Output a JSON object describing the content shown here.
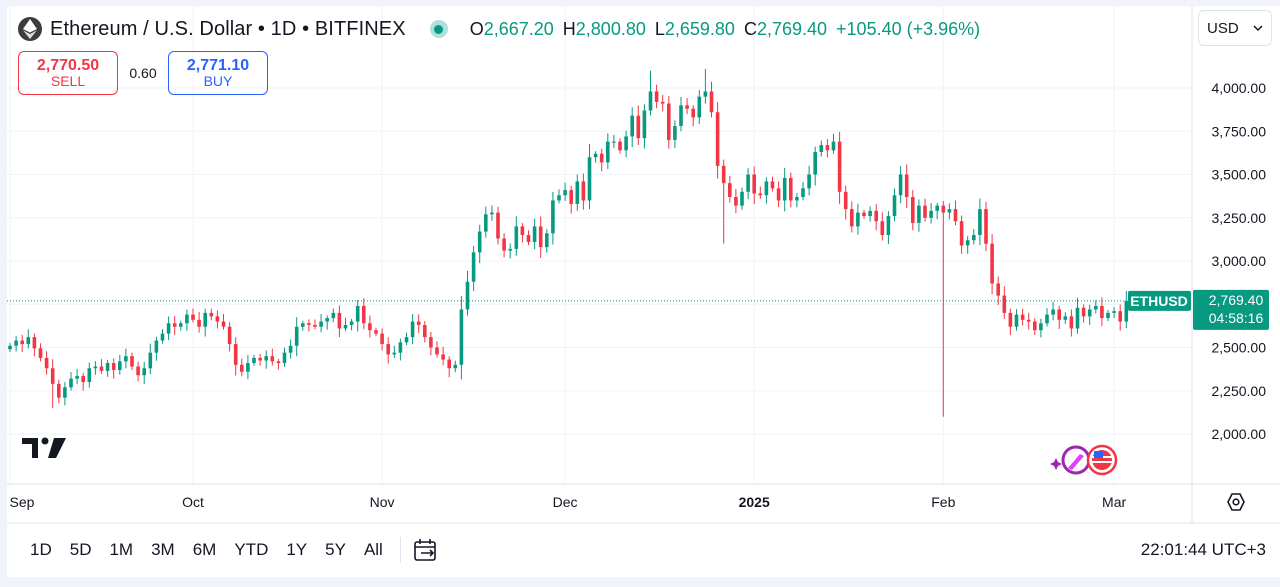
{
  "header": {
    "symbol_title": "Ethereum / U.S. Dollar • 1D • BITFINEX",
    "ohlc": [
      {
        "key": "O",
        "value": "2,667.20"
      },
      {
        "key": "H",
        "value": "2,800.80"
      },
      {
        "key": "L",
        "value": "2,659.80"
      },
      {
        "key": "C",
        "value": "2,769.40"
      }
    ],
    "change": "+105.40 (+3.96%)"
  },
  "trade": {
    "sell_price": "2,770.50",
    "sell_label": "SELL",
    "spread": "0.60",
    "buy_price": "2,771.10",
    "buy_label": "BUY"
  },
  "currency": {
    "label": "USD"
  },
  "price_scale": {
    "ticks": [
      "4,000.00",
      "3,750.00",
      "3,500.00",
      "3,250.00",
      "3,000.00",
      "2,500.00",
      "2,250.00",
      "2,000.00"
    ],
    "tick_values": [
      4000,
      3750,
      3500,
      3250,
      3000,
      2500,
      2250,
      2000
    ],
    "symbol_label": "ETHUSD",
    "last_price": "2,769.40",
    "countdown": "04:58:16",
    "last_value": 2769.4
  },
  "time_scale": {
    "labels": [
      {
        "text": "Sep",
        "day": 0,
        "bold": false
      },
      {
        "text": "Oct",
        "day": 30,
        "bold": false
      },
      {
        "text": "Nov",
        "day": 61,
        "bold": false
      },
      {
        "text": "Dec",
        "day": 91,
        "bold": false
      },
      {
        "text": "2025",
        "day": 122,
        "bold": true
      },
      {
        "text": "Feb",
        "day": 153,
        "bold": false
      },
      {
        "text": "Mar",
        "day": 181,
        "bold": false
      }
    ]
  },
  "ranges": [
    "1D",
    "5D",
    "1M",
    "3M",
    "6M",
    "YTD",
    "1Y",
    "5Y",
    "All"
  ],
  "clock": "22:01:44 UTC+3",
  "colors": {
    "up": "#089981",
    "down": "#f23645",
    "grid": "#f0f3fa",
    "accent": "#2962ff"
  },
  "chart_data": {
    "type": "candlestick",
    "start_date": "2024-08-31",
    "interval": "1D",
    "ylim": [
      1850,
      4250
    ],
    "series": [
      {
        "name": "ETHUSD",
        "closes": [
          2510,
          2540,
          2520,
          2560,
          2495,
          2440,
          2380,
          2290,
          2210,
          2270,
          2320,
          2335,
          2300,
          2380,
          2390,
          2365,
          2410,
          2370,
          2420,
          2450,
          2390,
          2340,
          2380,
          2470,
          2540,
          2580,
          2640,
          2620,
          2640,
          2690,
          2660,
          2620,
          2700,
          2680,
          2650,
          2620,
          2520,
          2400,
          2360,
          2410,
          2440,
          2425,
          2450,
          2420,
          2410,
          2470,
          2510,
          2620,
          2640,
          2630,
          2620,
          2650,
          2670,
          2700,
          2610,
          2630,
          2650,
          2740,
          2640,
          2600,
          2580,
          2520,
          2460,
          2470,
          2530,
          2560,
          2650,
          2630,
          2560,
          2500,
          2460,
          2430,
          2380,
          2400,
          2720,
          2880,
          3050,
          3170,
          3270,
          3280,
          3130,
          3060,
          3070,
          3200,
          3150,
          3110,
          3200,
          3080,
          3160,
          3350,
          3380,
          3410,
          3330,
          3460,
          3350,
          3600,
          3620,
          3570,
          3690,
          3690,
          3640,
          3720,
          3840,
          3710,
          3870,
          3980,
          3920,
          3910,
          3700,
          3780,
          3900,
          3880,
          3830,
          3950,
          3980,
          3860,
          3550,
          3450,
          3370,
          3320,
          3400,
          3500,
          3390,
          3380,
          3460,
          3420,
          3350,
          3480,
          3350,
          3370,
          3420,
          3500,
          3630,
          3670,
          3640,
          3690,
          3400,
          3300,
          3200,
          3280,
          3260,
          3290,
          3230,
          3150,
          3260,
          3380,
          3500,
          3370,
          3220,
          3320,
          3250,
          3290,
          3320,
          3280,
          3300,
          3230,
          3090,
          3120,
          3150,
          3300,
          3100,
          2870,
          2800,
          2700,
          2620,
          2690,
          2660,
          2650,
          2600,
          2640,
          2690,
          2720,
          2660,
          2680,
          2610,
          2730,
          2680,
          2720,
          2740,
          2670,
          2700,
          2710,
          2650,
          2770
        ]
      }
    ],
    "wick_extremes": [
      {
        "day": 7,
        "low": 2150
      },
      {
        "day": 105,
        "high": 4100
      },
      {
        "day": 114,
        "high": 4110
      },
      {
        "day": 117,
        "low": 3100
      },
      {
        "day": 148,
        "high": 3410
      },
      {
        "day": 153,
        "low": 2100
      }
    ]
  }
}
